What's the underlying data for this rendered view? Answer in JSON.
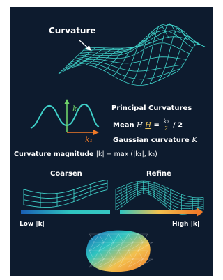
{
  "title": "Curvature",
  "principal": {
    "heading": "Principal Curvatures",
    "mean_label": "Mean",
    "mean_H": "H",
    "mean_H2": "H",
    "mean_equals": "=",
    "mean_num": "k₂",
    "mean_den": "2",
    "mean_tail": "/ 2",
    "gaussian_label": "Gaussian curvature",
    "gaussian_K": "K"
  },
  "magnitude": {
    "label": "Curvature magnitude",
    "formula": "|k| = max (|k₁|, k₂)"
  },
  "axes": {
    "k1": "k₁",
    "k2": "k₂"
  },
  "coarsen_label": "Coarsen",
  "refine_label": "Refine",
  "legend": {
    "low": "Low |k|",
    "high": "High |k|"
  },
  "colors": {
    "background": "#0d1b2e",
    "mesh": "#3fd1c9",
    "accent": "#e8c15a",
    "arrow_k1": "#f07a28",
    "arrow_k2": "#6fd46a",
    "gradient": [
      "#1a5fb4",
      "#2ec4c0",
      "#f2c14e",
      "#f07a28"
    ]
  }
}
